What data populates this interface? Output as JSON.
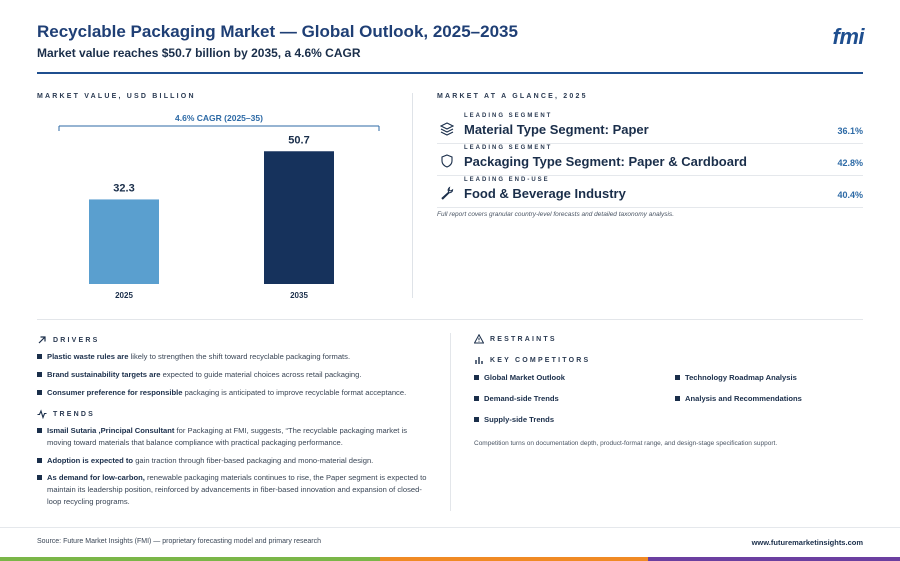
{
  "header": {
    "title": "Recyclable Packaging Market — Global Outlook, 2025–2035",
    "subtitle": "Market value reaches $50.7 billion by 2035, a 4.6% CAGR",
    "logo": "fmi"
  },
  "market_value": {
    "label": "MARKET VALUE, USD BILLION",
    "cagr_label": "4.6% CAGR (2025–35)"
  },
  "chart_data": {
    "type": "bar",
    "categories": [
      "2025",
      "2035"
    ],
    "values": [
      32.3,
      50.7
    ],
    "value_labels": [
      "32.3",
      "50.7"
    ],
    "colors": [
      "#5a9fcf",
      "#16325c"
    ],
    "annotation": "4.6% CAGR (2025–35)",
    "title": "",
    "xlabel": "",
    "ylabel": "",
    "ylim": [
      0,
      55
    ],
    "grid": false
  },
  "glance": {
    "label": "MARKET AT A GLANCE, 2025",
    "items": [
      {
        "kicker": "LEADING SEGMENT",
        "name": "Material Type Segment: Paper",
        "pct": "36.1%",
        "icon": "layers-icon"
      },
      {
        "kicker": "LEADING SEGMENT",
        "name": "Packaging Type Segment: Paper & Cardboard",
        "pct": "42.8%",
        "icon": "shield-icon"
      },
      {
        "kicker": "LEADING END-USE",
        "name": "Food & Beverage Industry",
        "pct": "40.4%",
        "icon": "wrench-icon"
      }
    ],
    "footnote": "Full report covers granular country-level forecasts and detailed taxonomy analysis."
  },
  "drivers": {
    "label": "DRIVERS",
    "items": [
      {
        "bold": "Plastic waste rules are",
        "text": " likely to strengthen the shift toward recyclable packaging formats."
      },
      {
        "bold": "Brand sustainability targets are",
        "text": " expected to guide material choices across retail packaging."
      },
      {
        "bold": "Consumer preference for responsible",
        "text": " packaging is anticipated to improve recyclable format acceptance."
      }
    ]
  },
  "trends": {
    "label": "TRENDS",
    "items": [
      {
        "bold": "Ismail Sutaria ,Principal Consultant",
        "text": " for Packaging at FMI, suggests, “The recyclable packaging market is moving toward materials that balance compliance with practical packaging performance."
      },
      {
        "bold": "Adoption is expected to",
        "text": " gain traction through fiber-based packaging and mono-material design."
      },
      {
        "bold": "As demand for low-carbon,",
        "text": " renewable packaging materials continues to rise, the Paper segment is expected to maintain its leadership position, reinforced by advancements in fiber-based innovation and expansion of closed-loop recycling programs."
      }
    ]
  },
  "restraints": {
    "label": "RESTRAINTS"
  },
  "competitors": {
    "label": "KEY COMPETITORS",
    "items": [
      "Global Market Outlook",
      "Technology Roadmap Analysis",
      "Demand-side Trends",
      "Analysis and Recommendations",
      "Supply-side Trends"
    ],
    "note": "Competition turns on documentation depth, product-format range, and design-stage specification support."
  },
  "footer": {
    "source": "Source: Future Market Insights (FMI) — proprietary forecasting model and primary research",
    "site": "www.futuremarketinsights.com",
    "stripe_colors": [
      "#7ab648",
      "#f08a24",
      "#6b3fa0"
    ]
  }
}
